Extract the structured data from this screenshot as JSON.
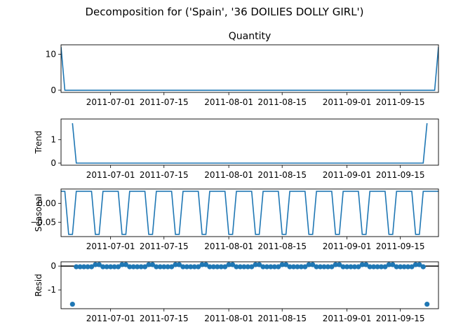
{
  "figure": {
    "suptitle": "Decomposition for ('Spain', '36 DOILIES DOLLY GIRL')",
    "colors": {
      "line": "#1f77b4",
      "zero_line": "#000000",
      "axes": "#000000"
    }
  },
  "chart_data": [
    {
      "type": "line",
      "title": "Quantity",
      "ylabel": "",
      "x_start": "2011-06-18",
      "x_end": "2011-09-25",
      "ylim": [
        -0.6,
        12.6
      ],
      "yticks": [
        0,
        10
      ],
      "xticks": [
        "2011-07-01",
        "2011-07-15",
        "2011-08-01",
        "2011-08-15",
        "2011-09-01",
        "2011-09-15"
      ],
      "points": [
        {
          "x": "2011-06-18",
          "y": 12
        },
        {
          "x": "2011-06-19",
          "y": 0
        },
        {
          "x": "2011-09-24",
          "y": 0
        },
        {
          "x": "2011-09-25",
          "y": 12
        }
      ]
    },
    {
      "type": "line",
      "title": "",
      "ylabel": "Trend",
      "x_start": "2011-06-18",
      "x_end": "2011-09-25",
      "ylim": [
        -0.09,
        1.89
      ],
      "yticks": [
        0,
        1
      ],
      "xticks": [
        "2011-07-01",
        "2011-07-15",
        "2011-08-01",
        "2011-08-15",
        "2011-09-01",
        "2011-09-15"
      ],
      "points": [
        {
          "x": "2011-06-21",
          "y": 1.71
        },
        {
          "x": "2011-06-22",
          "y": 0
        },
        {
          "x": "2011-09-21",
          "y": 0
        },
        {
          "x": "2011-09-22",
          "y": 1.71
        }
      ]
    },
    {
      "type": "line",
      "title": "",
      "ylabel": "Seasonal",
      "x_start": "2011-06-18",
      "x_end": "2011-09-25",
      "ylim": [
        -0.0875,
        0.0375
      ],
      "yticks": [
        0.0,
        -0.05
      ],
      "ytick_labels": [
        "0.00",
        "−0.05"
      ],
      "xticks": [
        "2011-07-01",
        "2011-07-15",
        "2011-08-01",
        "2011-08-15",
        "2011-09-01",
        "2011-09-15"
      ],
      "weekly_pattern": [
        0.0314,
        0.0314,
        -0.0816,
        -0.0816,
        0.0314,
        0.0314,
        0.0314
      ]
    },
    {
      "type": "scatter",
      "title": "",
      "ylabel": "Resid",
      "x_start": "2011-06-18",
      "x_end": "2011-09-25",
      "ylim": [
        -1.79,
        0.18
      ],
      "yticks": [
        0,
        -1
      ],
      "xticks": [
        "2011-07-01",
        "2011-07-15",
        "2011-08-01",
        "2011-08-15",
        "2011-09-01",
        "2011-09-15"
      ],
      "zero_line": 0,
      "points_start": "2011-06-21",
      "points_end": "2011-09-22",
      "weekly_pattern": [
        0.06,
        -0.03,
        -0.03,
        -0.03,
        -0.03,
        -0.03,
        0.06
      ],
      "outliers": [
        {
          "x": "2011-06-21",
          "y": -1.6
        },
        {
          "x": "2011-09-22",
          "y": -1.6
        }
      ]
    }
  ]
}
